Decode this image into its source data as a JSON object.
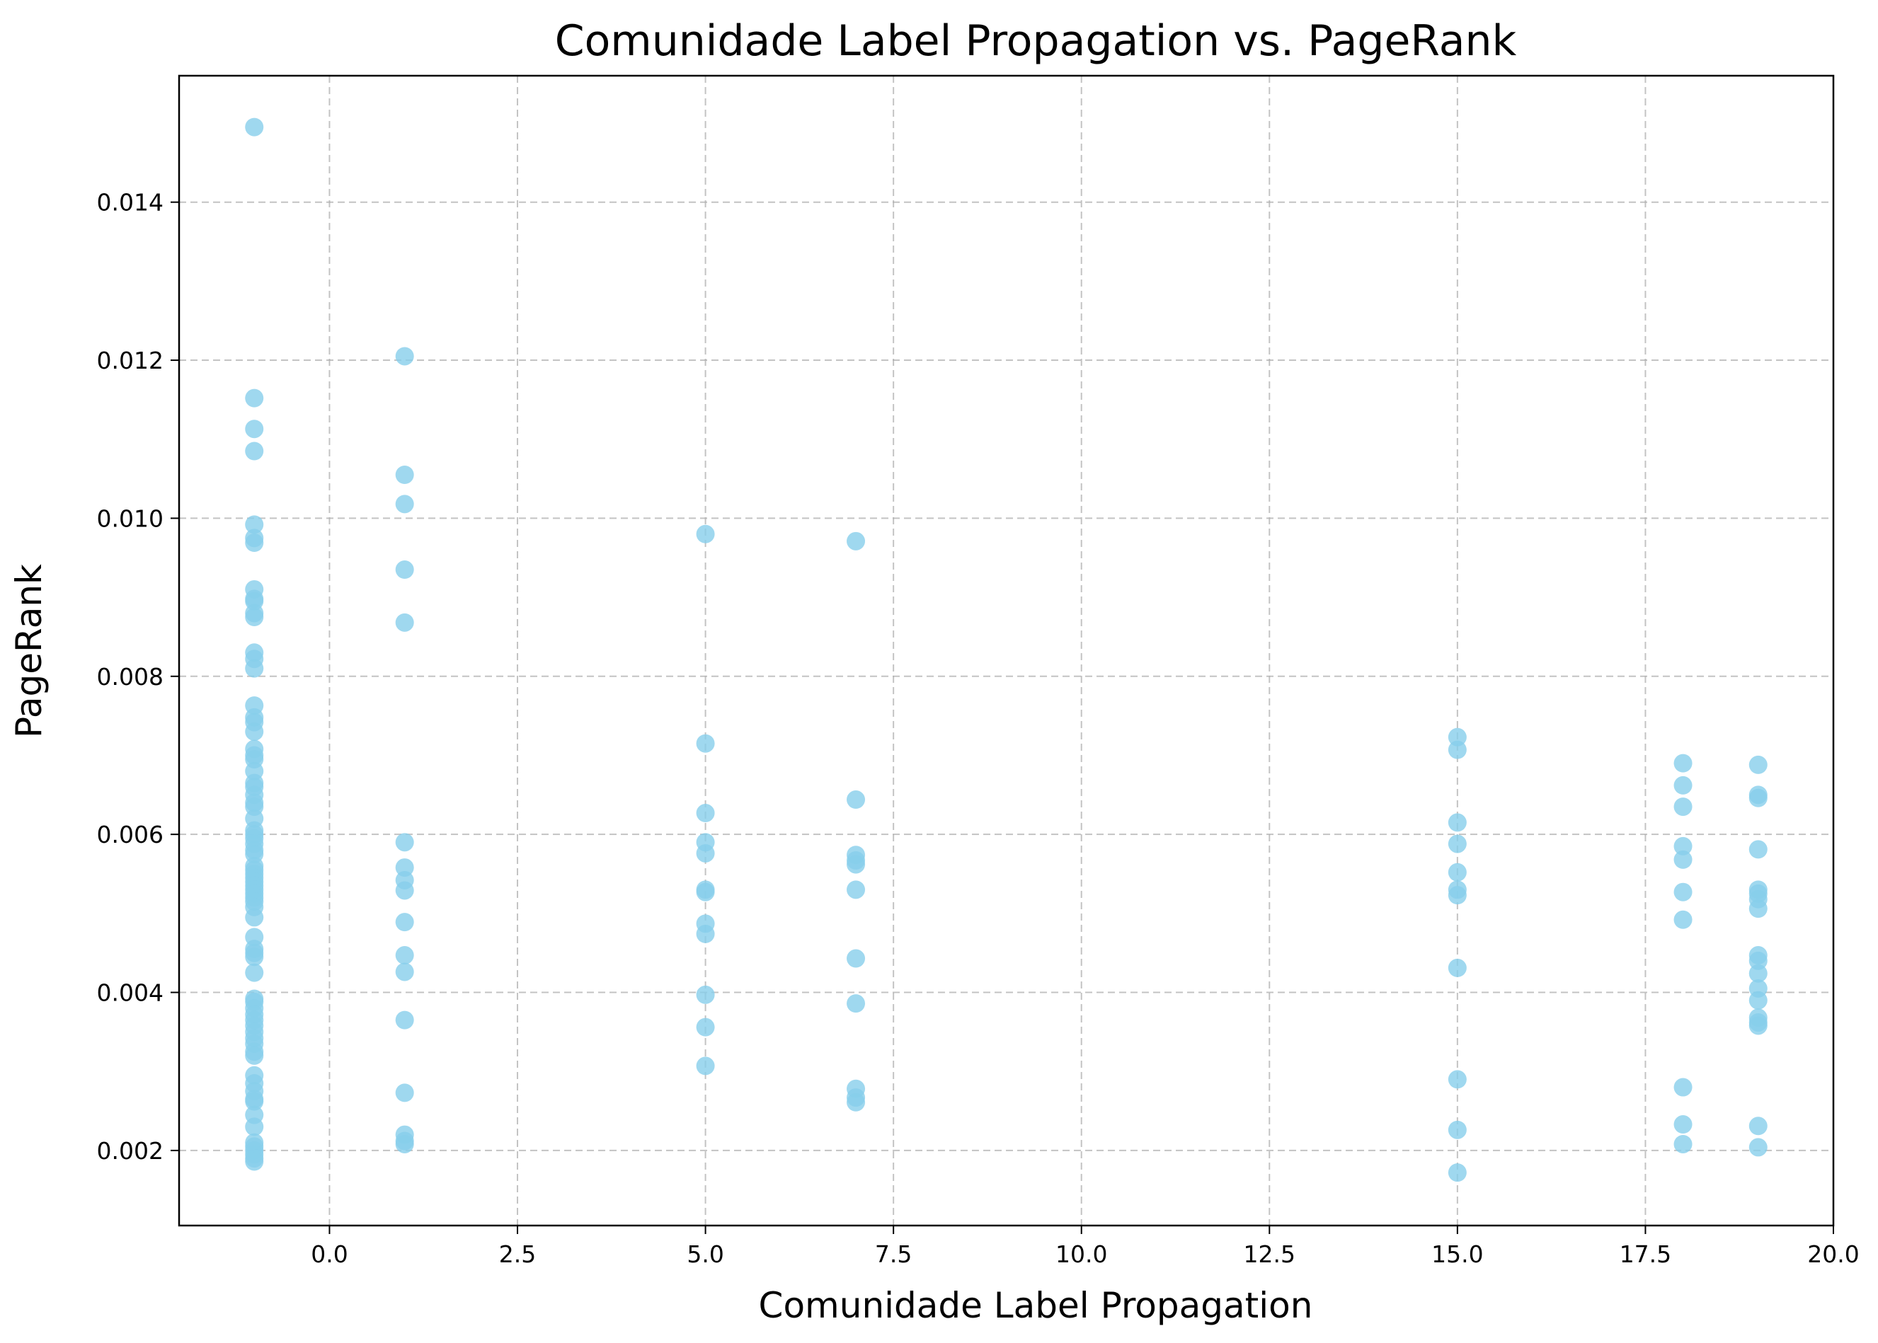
{
  "chart_data": {
    "type": "scatter",
    "title": "Comunidade Label Propagation vs. PageRank",
    "xlabel": "Comunidade Label Propagation",
    "ylabel": "PageRank",
    "xlim": [
      -2,
      20
    ],
    "ylim": [
      0.00105,
      0.0156
    ],
    "xticks": [
      0.0,
      2.5,
      5.0,
      7.5,
      10.0,
      12.5,
      15.0,
      17.5,
      20.0
    ],
    "xtick_labels": [
      "0.0",
      "2.5",
      "5.0",
      "7.5",
      "10.0",
      "12.5",
      "15.0",
      "17.5",
      "20.0"
    ],
    "yticks": [
      0.002,
      0.004,
      0.006,
      0.008,
      0.01,
      0.012,
      0.014
    ],
    "ytick_labels": [
      "0.002",
      "0.004",
      "0.006",
      "0.008",
      "0.010",
      "0.012",
      "0.014"
    ],
    "grid": true,
    "marker_color": "#87ceeb",
    "marker_alpha": 0.8,
    "series": [
      {
        "x": -1,
        "values": [
          0.01495,
          0.01152,
          0.01113,
          0.01085,
          0.00992,
          0.00975,
          0.00969,
          0.0091,
          0.00898,
          0.00895,
          0.0088,
          0.00875,
          0.0083,
          0.00822,
          0.0081,
          0.00763,
          0.00748,
          0.00742,
          0.0073,
          0.00708,
          0.007,
          0.00695,
          0.0068,
          0.00665,
          0.0066,
          0.0065,
          0.0064,
          0.00635,
          0.0062,
          0.00605,
          0.006,
          0.00595,
          0.00588,
          0.0058,
          0.00575,
          0.0056,
          0.00555,
          0.0055,
          0.00545,
          0.0054,
          0.00535,
          0.0053,
          0.00525,
          0.0052,
          0.00515,
          0.00508,
          0.00495,
          0.0047,
          0.00455,
          0.0045,
          0.00445,
          0.00425,
          0.00392,
          0.00388,
          0.0038,
          0.00372,
          0.00365,
          0.00358,
          0.0035,
          0.00342,
          0.00335,
          0.00325,
          0.0032,
          0.00295,
          0.00285,
          0.00275,
          0.00265,
          0.00262,
          0.00245,
          0.0023,
          0.0021,
          0.00205,
          0.002,
          0.00195,
          0.0019,
          0.00186
        ]
      },
      {
        "x": 1,
        "values": [
          0.01205,
          0.01055,
          0.01018,
          0.00935,
          0.00868,
          0.0059,
          0.00558,
          0.00542,
          0.00529,
          0.00489,
          0.00447,
          0.00426,
          0.00365,
          0.00273,
          0.0022,
          0.00212,
          0.00208
        ]
      },
      {
        "x": 5,
        "values": [
          0.0098,
          0.00715,
          0.00627,
          0.0059,
          0.00576,
          0.0053,
          0.00527,
          0.00487,
          0.00474,
          0.00397,
          0.00356,
          0.00307
        ]
      },
      {
        "x": 7,
        "values": [
          0.00971,
          0.00644,
          0.00574,
          0.00567,
          0.00562,
          0.0053,
          0.00443,
          0.00386,
          0.00278,
          0.00267,
          0.00261
        ]
      },
      {
        "x": 15,
        "values": [
          0.00723,
          0.00707,
          0.00615,
          0.00588,
          0.00552,
          0.0053,
          0.00523,
          0.00431,
          0.0029,
          0.00226,
          0.00172
        ]
      },
      {
        "x": 18,
        "values": [
          0.0069,
          0.00662,
          0.00635,
          0.00585,
          0.00568,
          0.00527,
          0.00492,
          0.0028,
          0.00233,
          0.00208
        ]
      },
      {
        "x": 19,
        "values": [
          0.00688,
          0.0065,
          0.00646,
          0.00581,
          0.0053,
          0.00525,
          0.00518,
          0.00506,
          0.00447,
          0.0044,
          0.00424,
          0.00405,
          0.0039,
          0.00368,
          0.00362,
          0.00358,
          0.00231,
          0.00204
        ]
      }
    ]
  }
}
